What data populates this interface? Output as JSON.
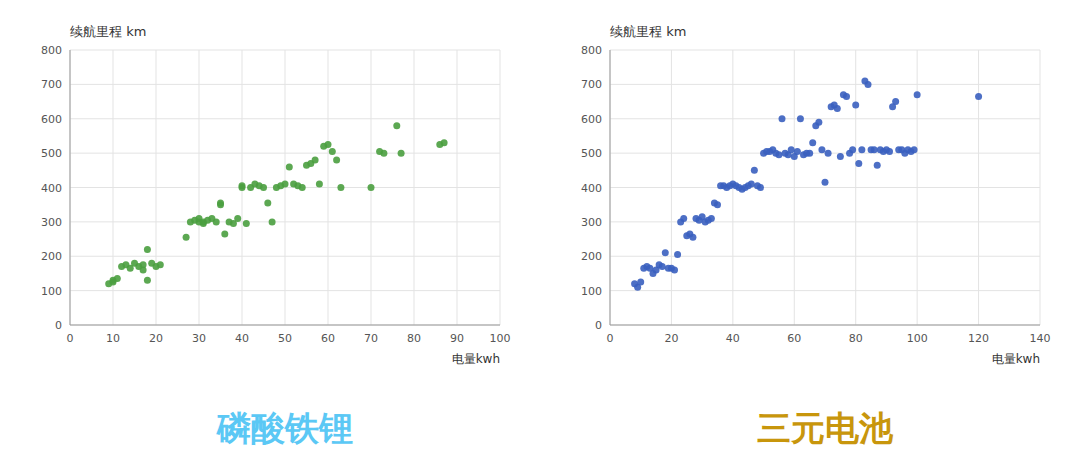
{
  "chart_data": [
    {
      "type": "scatter",
      "x": [
        9,
        10,
        10,
        11,
        12,
        13,
        14,
        15,
        16,
        17,
        17,
        18,
        18,
        19,
        20,
        21,
        27,
        28,
        29,
        30,
        30,
        31,
        31,
        32,
        33,
        34,
        35,
        35,
        36,
        37,
        38,
        39,
        40,
        40,
        41,
        42,
        43,
        44,
        45,
        46,
        47,
        48,
        49,
        50,
        51,
        52,
        53,
        54,
        55,
        56,
        57,
        58,
        59,
        60,
        61,
        62,
        63,
        70,
        72,
        73,
        76,
        77,
        86,
        87
      ],
      "values": [
        120,
        125,
        130,
        135,
        170,
        175,
        165,
        180,
        170,
        175,
        160,
        220,
        130,
        180,
        170,
        175,
        255,
        300,
        305,
        300,
        310,
        295,
        300,
        305,
        310,
        300,
        350,
        355,
        265,
        300,
        295,
        310,
        400,
        405,
        295,
        400,
        410,
        405,
        400,
        355,
        300,
        400,
        405,
        410,
        460,
        410,
        405,
        400,
        465,
        470,
        480,
        410,
        520,
        525,
        505,
        480,
        400,
        400,
        505,
        500,
        580,
        500,
        525,
        530
      ],
      "color": "#4a9e3f",
      "y_label": "续航里程 km",
      "x_label": "电量kwh",
      "annotations": [
        {
          "text": "磷酸铁锂",
          "color": "#5bc8f5"
        }
      ],
      "xlim": [
        0,
        100
      ],
      "xticks": [
        0,
        10,
        20,
        30,
        40,
        50,
        60,
        70,
        80,
        90,
        100
      ],
      "ylim": [
        0,
        800
      ],
      "yticks": [
        0,
        100,
        200,
        300,
        400,
        500,
        600,
        700,
        800
      ],
      "grid": true
    },
    {
      "type": "scatter",
      "x": [
        8,
        9,
        10,
        11,
        12,
        13,
        14,
        15,
        16,
        17,
        18,
        19,
        20,
        21,
        22,
        23,
        24,
        25,
        26,
        27,
        28,
        29,
        30,
        31,
        32,
        33,
        34,
        35,
        36,
        37,
        38,
        39,
        40,
        41,
        42,
        43,
        44,
        45,
        46,
        47,
        48,
        49,
        50,
        51,
        52,
        53,
        54,
        55,
        56,
        57,
        58,
        59,
        60,
        61,
        62,
        63,
        64,
        65,
        66,
        67,
        68,
        69,
        70,
        71,
        72,
        73,
        74,
        75,
        76,
        77,
        78,
        79,
        80,
        81,
        82,
        83,
        84,
        85,
        86,
        87,
        88,
        89,
        90,
        91,
        92,
        93,
        94,
        95,
        96,
        97,
        98,
        99,
        100,
        120
      ],
      "values": [
        120,
        110,
        125,
        165,
        170,
        165,
        150,
        160,
        175,
        170,
        210,
        165,
        165,
        160,
        205,
        300,
        310,
        260,
        265,
        255,
        310,
        305,
        315,
        300,
        305,
        310,
        355,
        350,
        405,
        405,
        400,
        405,
        410,
        405,
        400,
        395,
        400,
        405,
        410,
        450,
        405,
        400,
        500,
        505,
        505,
        510,
        500,
        495,
        600,
        500,
        495,
        510,
        490,
        505,
        600,
        495,
        500,
        500,
        530,
        580,
        590,
        510,
        415,
        500,
        635,
        640,
        630,
        490,
        670,
        665,
        500,
        510,
        640,
        470,
        510,
        710,
        700,
        510,
        510,
        465,
        510,
        505,
        510,
        505,
        635,
        650,
        510,
        510,
        500,
        510,
        505,
        510,
        670,
        665
      ],
      "color": "#3a5fbf",
      "y_label": "续航里程 km",
      "x_label": "电量kwh",
      "annotations": [
        {
          "text": "三元电池",
          "color": "#c8960c"
        }
      ],
      "xlim": [
        0,
        140
      ],
      "xticks": [
        0,
        20,
        40,
        60,
        80,
        100,
        120,
        140
      ],
      "ylim": [
        0,
        800
      ],
      "yticks": [
        0,
        100,
        200,
        300,
        400,
        500,
        600,
        700,
        800
      ],
      "grid": true
    }
  ]
}
